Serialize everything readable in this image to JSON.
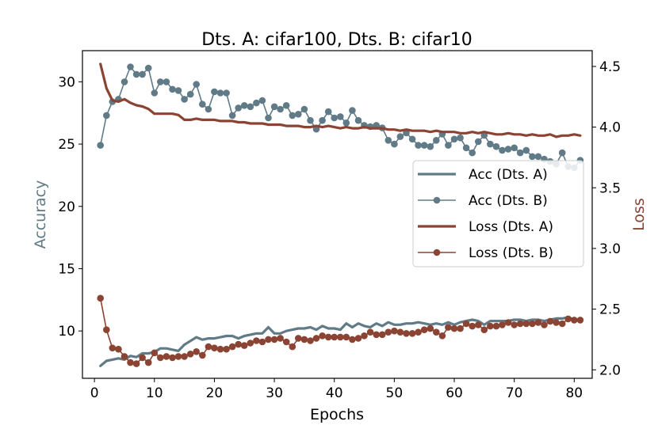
{
  "chart_data": {
    "type": "line",
    "title": "Dts. A: cifar100, Dts. B: cifar10",
    "xlabel": "Epochs",
    "ylabel_left": "Accuracy",
    "ylabel_right": "Loss",
    "xlim": [
      -2,
      83
    ],
    "ylim_left": [
      6.2,
      32.5
    ],
    "ylim_right": [
      1.93,
      4.63
    ],
    "x_ticks": [
      0,
      10,
      20,
      30,
      40,
      50,
      60,
      70,
      80
    ],
    "y_ticks_left": [
      10,
      15,
      20,
      25,
      30
    ],
    "y_ticks_right": [
      2.0,
      2.5,
      3.0,
      3.5,
      4.0,
      4.5
    ],
    "grid": false,
    "legend_position": "center-right",
    "colors": {
      "accuracy": "#607b87",
      "loss": "#8b4433"
    },
    "x": [
      1,
      2,
      3,
      4,
      5,
      6,
      7,
      8,
      9,
      10,
      11,
      12,
      13,
      14,
      15,
      16,
      17,
      18,
      19,
      20,
      21,
      22,
      23,
      24,
      25,
      26,
      27,
      28,
      29,
      30,
      31,
      32,
      33,
      34,
      35,
      36,
      37,
      38,
      39,
      40,
      41,
      42,
      43,
      44,
      45,
      46,
      47,
      48,
      49,
      50,
      51,
      52,
      53,
      54,
      55,
      56,
      57,
      58,
      59,
      60,
      61,
      62,
      63,
      64,
      65,
      66,
      67,
      68,
      69,
      70,
      71,
      72,
      73,
      74,
      75,
      76,
      77,
      78,
      79,
      80,
      81
    ],
    "series": [
      {
        "name": "Acc (Dts. A)",
        "axis": "left",
        "style": "line",
        "color": "#607b87",
        "values": [
          7.2,
          7.6,
          7.7,
          7.8,
          7.7,
          8.0,
          7.9,
          8.2,
          8.2,
          8.3,
          8.6,
          8.6,
          8.5,
          8.4,
          8.9,
          9.2,
          9.5,
          9.3,
          9.4,
          9.4,
          9.5,
          9.6,
          9.6,
          9.4,
          9.6,
          9.7,
          9.8,
          9.8,
          10.3,
          9.8,
          9.8,
          10.0,
          10.1,
          10.2,
          10.2,
          10.3,
          10.1,
          10.4,
          10.2,
          10.2,
          10.1,
          10.6,
          10.3,
          10.6,
          10.4,
          10.3,
          10.6,
          10.4,
          10.7,
          10.5,
          10.5,
          10.6,
          10.6,
          10.7,
          10.6,
          10.5,
          10.6,
          10.5,
          10.7,
          10.5,
          10.7,
          10.8,
          10.9,
          10.8,
          10.5,
          10.8,
          10.8,
          10.8,
          10.8,
          10.9,
          10.9,
          10.8,
          10.9,
          10.9,
          10.8,
          10.9,
          11.0,
          11.0,
          11.1,
          10.9,
          10.8
        ]
      },
      {
        "name": "Acc (Dts. B)",
        "axis": "left",
        "style": "line-marker",
        "color": "#607b87",
        "values": [
          24.9,
          27.3,
          28.4,
          28.6,
          30.0,
          31.2,
          30.6,
          30.6,
          31.1,
          29.1,
          30.0,
          30.0,
          29.4,
          29.3,
          28.6,
          29.0,
          29.8,
          28.2,
          27.8,
          29.2,
          29.1,
          29.1,
          27.3,
          27.9,
          28.1,
          28.0,
          28.3,
          28.5,
          27.1,
          28.0,
          27.8,
          28.1,
          27.3,
          27.4,
          27.8,
          26.9,
          26.2,
          26.9,
          27.6,
          27.1,
          27.2,
          26.7,
          27.7,
          26.9,
          26.5,
          26.4,
          26.5,
          26.3,
          25.3,
          25.0,
          25.6,
          25.9,
          25.4,
          24.9,
          24.9,
          24.8,
          25.3,
          25.8,
          24.9,
          25.4,
          25.5,
          24.7,
          24.3,
          25.2,
          25.7,
          25.0,
          24.8,
          24.5,
          24.6,
          24.7,
          24.3,
          24.5,
          24.0,
          24.0,
          23.8,
          23.6,
          23.4,
          24.3,
          23.2,
          23.1,
          23.7
        ]
      },
      {
        "name": "Loss (Dts. A)",
        "axis": "right",
        "style": "line",
        "color": "#8b4433",
        "values": [
          4.52,
          4.32,
          4.22,
          4.21,
          4.23,
          4.2,
          4.18,
          4.17,
          4.15,
          4.11,
          4.11,
          4.11,
          4.11,
          4.1,
          4.06,
          4.06,
          4.07,
          4.06,
          4.06,
          4.06,
          4.05,
          4.05,
          4.05,
          4.04,
          4.04,
          4.03,
          4.03,
          4.03,
          4.02,
          4.02,
          4.02,
          4.01,
          4.01,
          4.01,
          4.0,
          4.0,
          4.01,
          4.0,
          4.01,
          4.0,
          3.99,
          4.0,
          3.99,
          3.99,
          4.0,
          3.99,
          3.99,
          3.99,
          3.98,
          3.98,
          3.97,
          3.98,
          3.97,
          3.97,
          3.97,
          3.96,
          3.97,
          3.96,
          3.96,
          3.96,
          3.95,
          3.95,
          3.96,
          3.95,
          3.96,
          3.95,
          3.94,
          3.94,
          3.95,
          3.94,
          3.94,
          3.93,
          3.94,
          3.93,
          3.93,
          3.94,
          3.92,
          3.93,
          3.93,
          3.94,
          3.93
        ]
      },
      {
        "name": "Loss (Dts. B)",
        "axis": "right",
        "style": "line-marker",
        "color": "#8b4433",
        "values": [
          2.59,
          2.33,
          2.18,
          2.17,
          2.11,
          2.06,
          2.05,
          2.1,
          2.06,
          2.14,
          2.1,
          2.11,
          2.1,
          2.11,
          2.11,
          2.13,
          2.15,
          2.12,
          2.19,
          2.18,
          2.17,
          2.17,
          2.19,
          2.21,
          2.2,
          2.22,
          2.24,
          2.23,
          2.25,
          2.25,
          2.26,
          2.23,
          2.19,
          2.26,
          2.25,
          2.24,
          2.26,
          2.28,
          2.27,
          2.27,
          2.27,
          2.27,
          2.25,
          2.26,
          2.28,
          2.31,
          2.29,
          2.29,
          2.31,
          2.32,
          2.31,
          2.3,
          2.3,
          2.31,
          2.33,
          2.34,
          2.31,
          2.28,
          2.35,
          2.34,
          2.34,
          2.38,
          2.36,
          2.37,
          2.33,
          2.36,
          2.36,
          2.37,
          2.39,
          2.37,
          2.38,
          2.38,
          2.38,
          2.39,
          2.37,
          2.4,
          2.39,
          2.38,
          2.42,
          2.41,
          2.41
        ]
      }
    ]
  }
}
